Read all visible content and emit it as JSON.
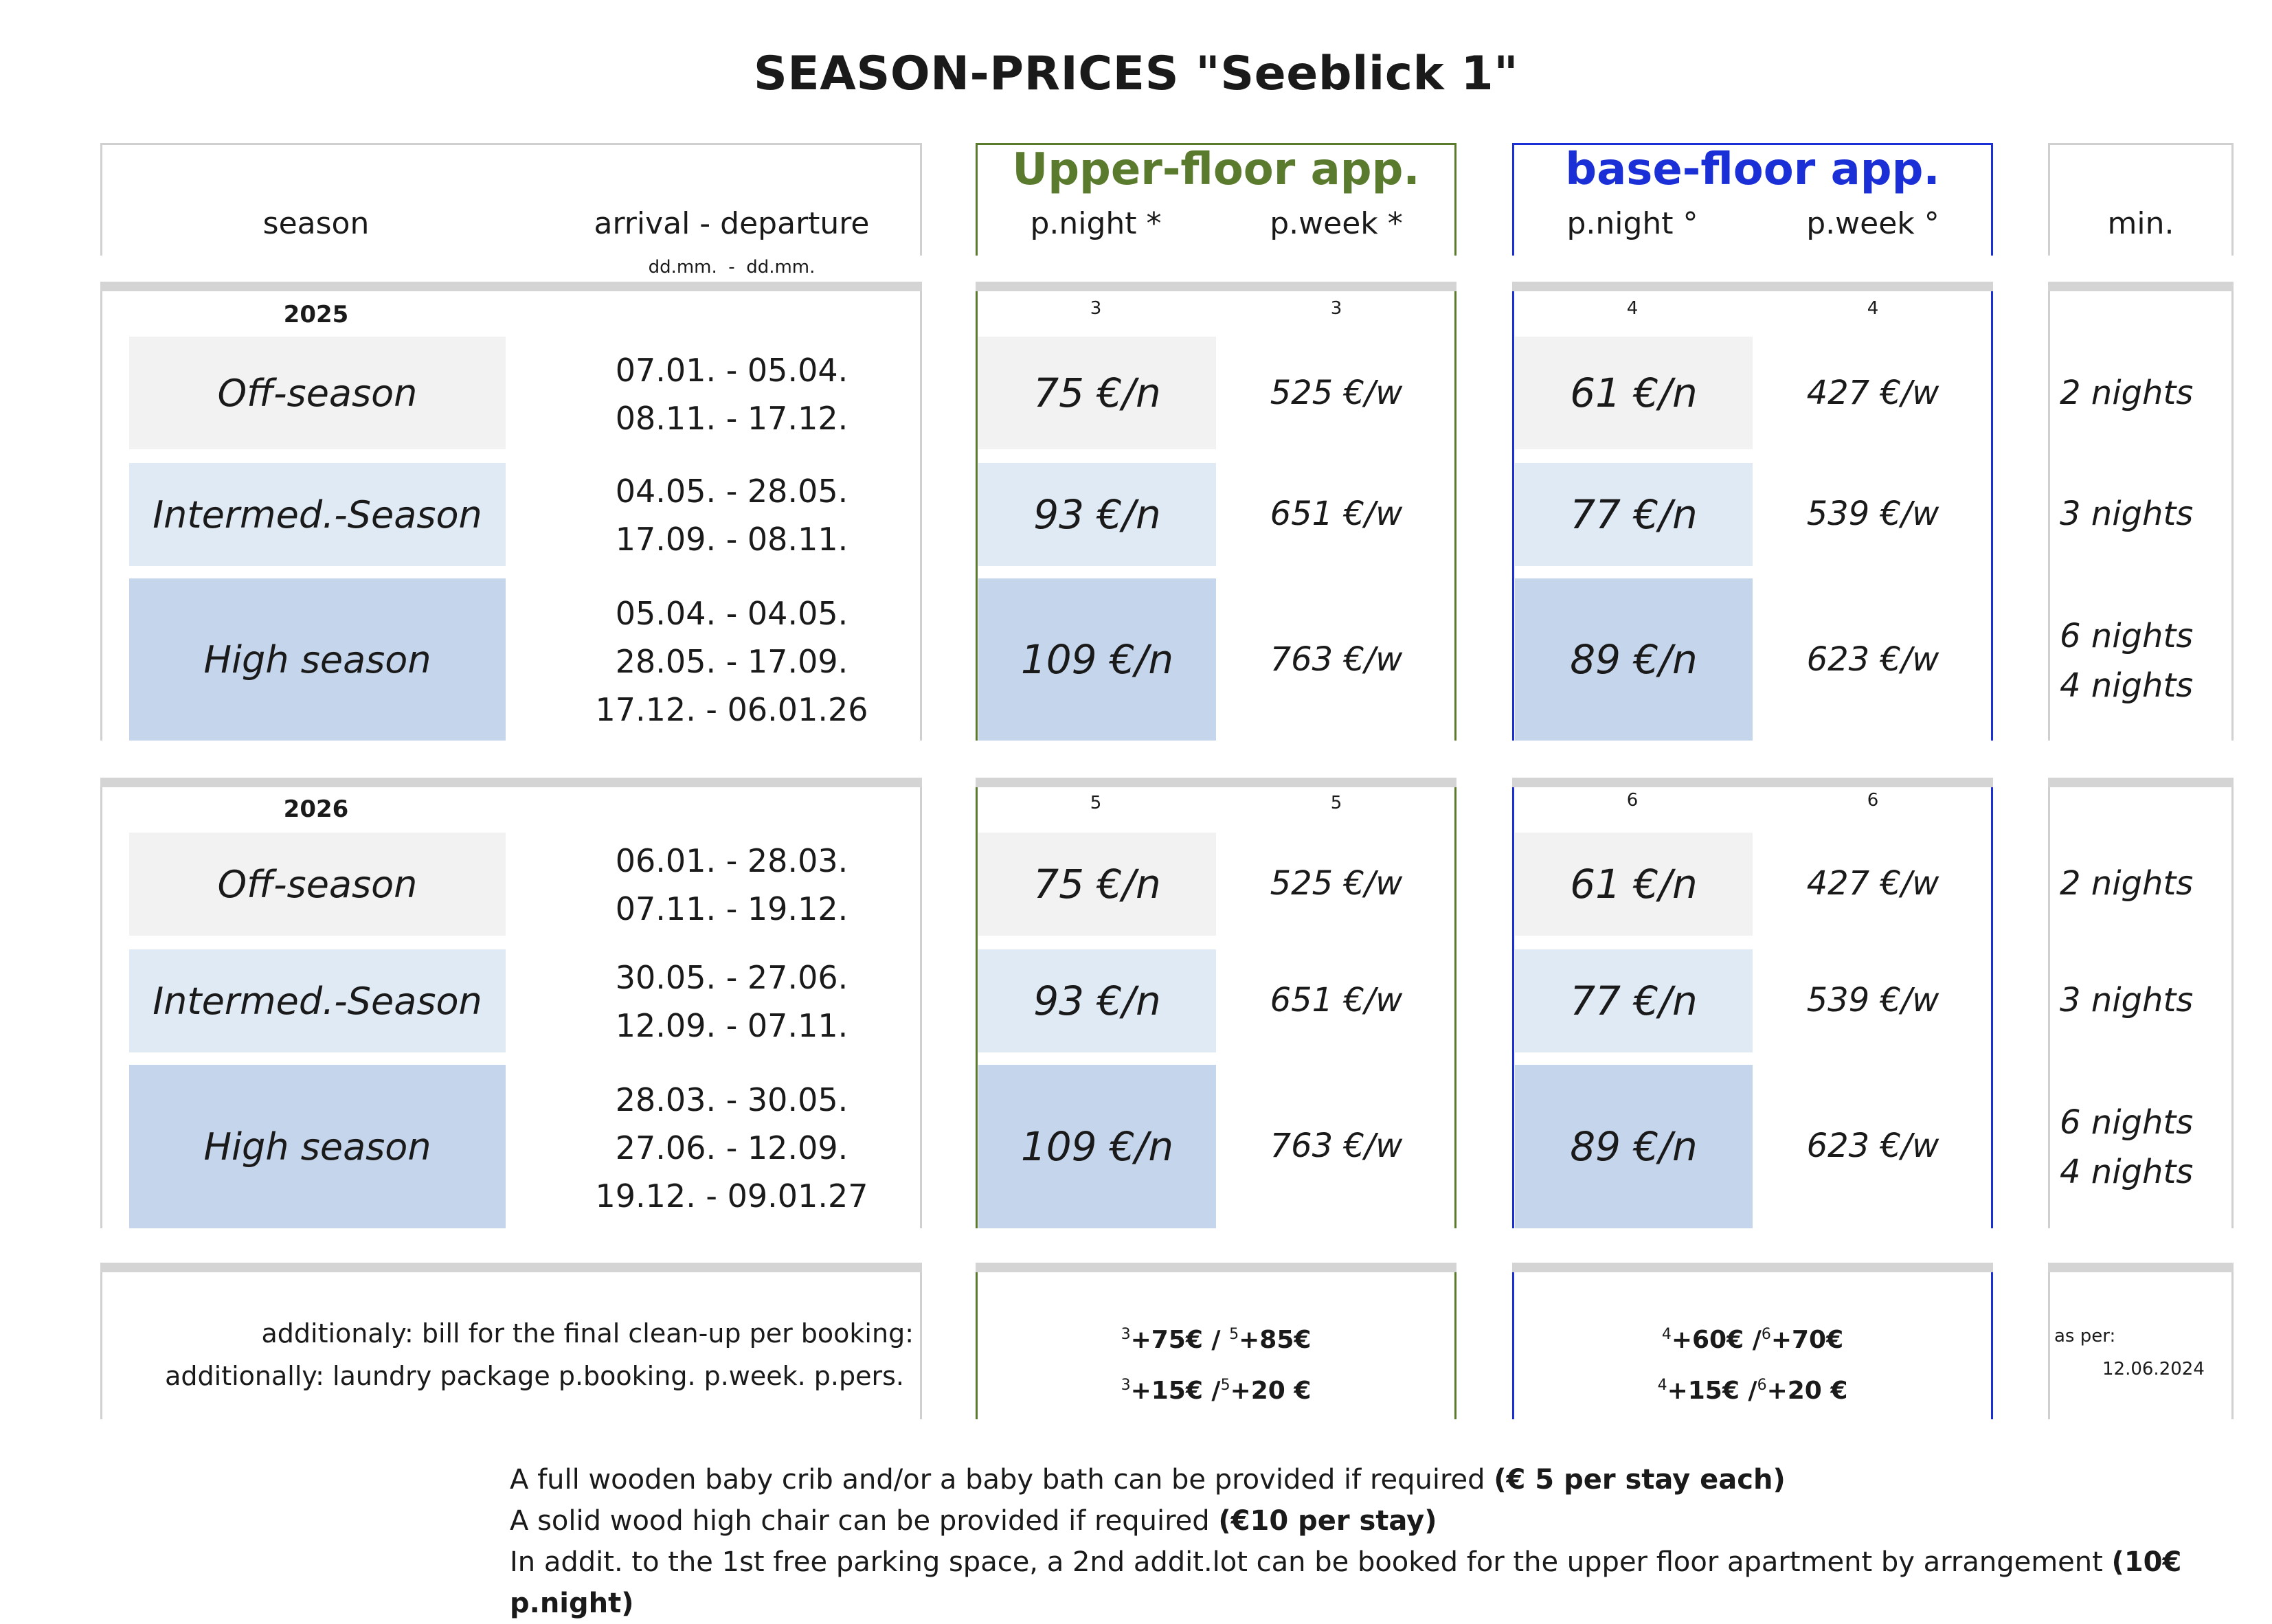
{
  "title": "SEASON-PRICES \"Seeblick 1\"",
  "headers": {
    "season": "season",
    "arrival_departure": "arrival - departure",
    "date_format": "dd.mm.  -  dd.mm.",
    "upper": {
      "title": "Upper-floor app.",
      "night": "p.night *",
      "week": "p.week *"
    },
    "base": {
      "title": "base-floor app.",
      "night": "p.night °",
      "week": "p.week °"
    },
    "min": "min."
  },
  "colors": {
    "upper": "#5a7a2e",
    "base": "#1a2fd6",
    "off": "#f2f2f2",
    "inter": "#dfeaf5",
    "high": "#c5d6ec"
  },
  "years": [
    {
      "year": "2025",
      "markers": {
        "upper_night": "3",
        "upper_week": "3",
        "base_night": "4",
        "base_week": "4"
      },
      "rows": [
        {
          "season": "Off-season",
          "dates": [
            "07.01. - 05.04.",
            "08.11. - 17.12."
          ],
          "upper_night": "75 €/n",
          "upper_week": "525 €/w",
          "base_night": "61 €/n",
          "base_week": "427 €/w",
          "min": [
            "2 nights"
          ]
        },
        {
          "season": "Intermed.-Season",
          "dates": [
            "04.05. - 28.05.",
            "17.09. - 08.11."
          ],
          "upper_night": "93 €/n",
          "upper_week": "651 €/w",
          "base_night": "77 €/n",
          "base_week": "539 €/w",
          "min": [
            "3 nights"
          ]
        },
        {
          "season": "High season",
          "dates": [
            "05.04. - 04.05.",
            "28.05. - 17.09.",
            "17.12. - 06.01.26"
          ],
          "upper_night": "109 €/n",
          "upper_week": "763 €/w",
          "base_night": "89 €/n",
          "base_week": "623 €/w",
          "min": [
            "6 nights",
            "4 nights"
          ]
        }
      ]
    },
    {
      "year": "2026",
      "markers": {
        "upper_night": "5",
        "upper_week": "5",
        "base_night": "6",
        "base_week": "6"
      },
      "rows": [
        {
          "season": "Off-season",
          "dates": [
            "06.01. - 28.03.",
            "07.11. - 19.12."
          ],
          "upper_night": "75 €/n",
          "upper_week": "525 €/w",
          "base_night": "61 €/n",
          "base_week": "427 €/w",
          "min": [
            "2 nights"
          ]
        },
        {
          "season": "Intermed.-Season",
          "dates": [
            "30.05. - 27.06.",
            "12.09. - 07.11."
          ],
          "upper_night": "93 €/n",
          "upper_week": "651 €/w",
          "base_night": "77 €/n",
          "base_week": "539 €/w",
          "min": [
            "3 nights"
          ]
        },
        {
          "season": "High season",
          "dates": [
            "28.03. - 30.05.",
            "27.06. - 12.09.",
            "19.12. - 09.01.27"
          ],
          "upper_night": "109 €/n",
          "upper_week": "763 €/w",
          "base_night": "89 €/n",
          "base_week": "623 €/w",
          "min": [
            "6 nights",
            "4 nights"
          ]
        }
      ]
    }
  ],
  "extras": {
    "cleanup_label": "additionaly: bill for the final clean-up per booking:",
    "laundry_label": "additionally: laundry package p.booking. p.week. p.pers.",
    "upper_cleanup": {
      "s1": "3",
      "v1": "+75€",
      "sep": " / ",
      "s2": "5",
      "v2": "+85€"
    },
    "upper_laundry": {
      "s1": "3",
      "v1": "+15€",
      "sep": " /",
      "s2": "5",
      "v2": "+20 €"
    },
    "base_cleanup": {
      "s1": "4",
      "v1": "+60€",
      "sep": " /",
      "s2": "6",
      "v2": "+70€"
    },
    "base_laundry": {
      "s1": "4",
      "v1": "+15€",
      "sep": " /",
      "s2": "6",
      "v2": "+20 €"
    },
    "as_per_label": "as per:",
    "as_per_date": "12.06.2024"
  },
  "notes": [
    {
      "text": "A full wooden baby crib and/or a baby bath can be provided if required ",
      "bold": "(€ 5 per stay each)"
    },
    {
      "text": "A solid wood high chair can be provided if required ",
      "bold": "(€10 per stay)"
    },
    {
      "text": "In addit. to the 1st free parking space, a 2nd addit.lot can be booked for the upper floor apartment by arrangement ",
      "bold": "(10€ p.night)"
    }
  ]
}
